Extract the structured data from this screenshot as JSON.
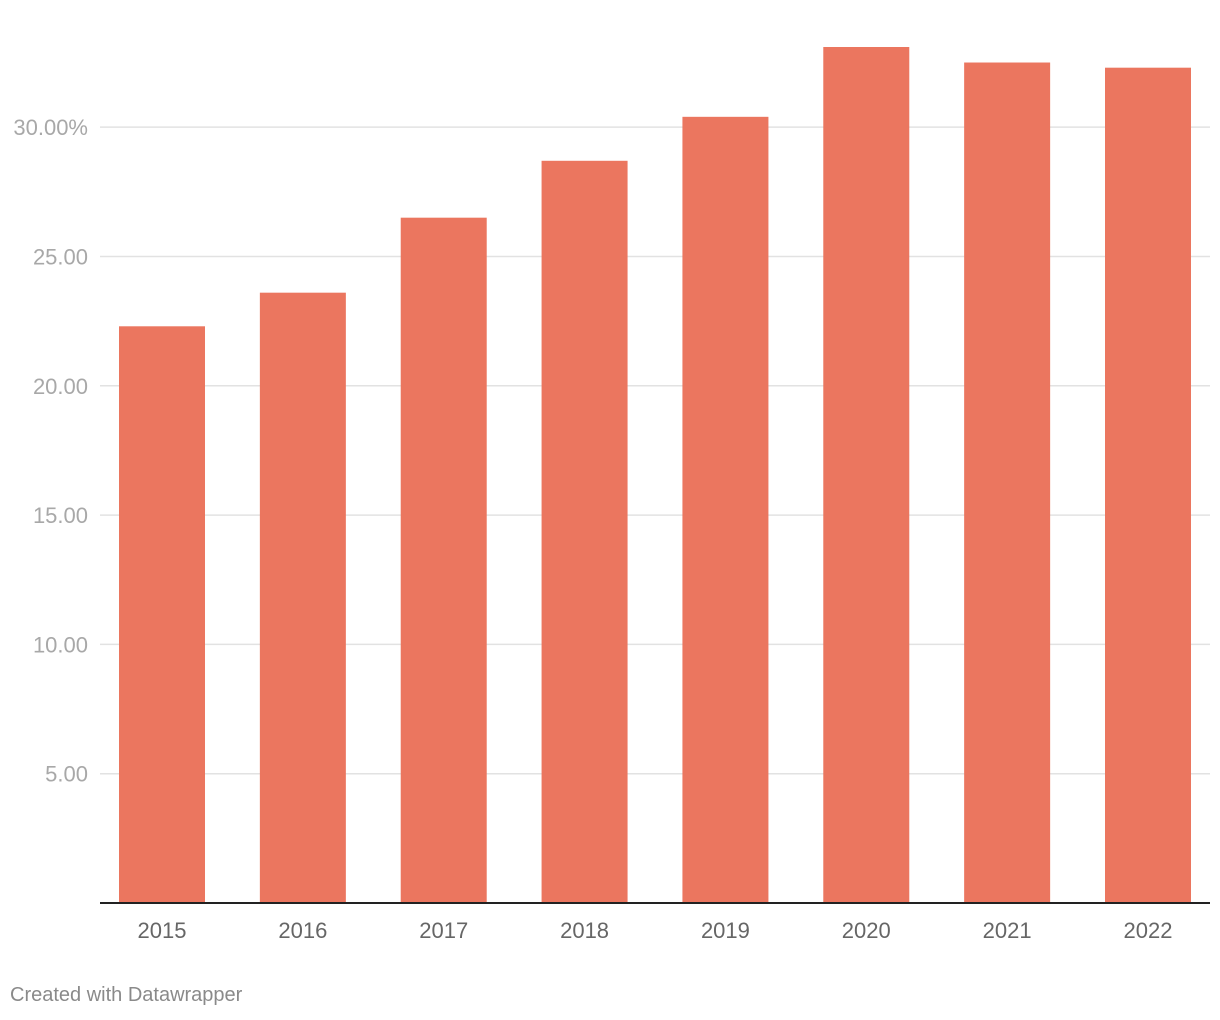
{
  "chart_data": {
    "type": "bar",
    "categories": [
      "2015",
      "2016",
      "2017",
      "2018",
      "2019",
      "2020",
      "2021",
      "2022"
    ],
    "values": [
      22.3,
      23.6,
      26.5,
      28.7,
      30.4,
      33.1,
      32.5,
      32.3
    ],
    "ylim": [
      0,
      33.1
    ],
    "yticks": [
      5,
      10,
      15,
      20,
      25,
      30
    ],
    "ytick_labels": [
      "5.00",
      "10.00",
      "15.00",
      "20.00",
      "25.00",
      "30.00%"
    ],
    "grid": true,
    "bar_color": "#eb765f",
    "gridline_color": "#e2e2e2",
    "axis_color": "#222222"
  },
  "footer": {
    "credit": "Created with Datawrapper"
  }
}
